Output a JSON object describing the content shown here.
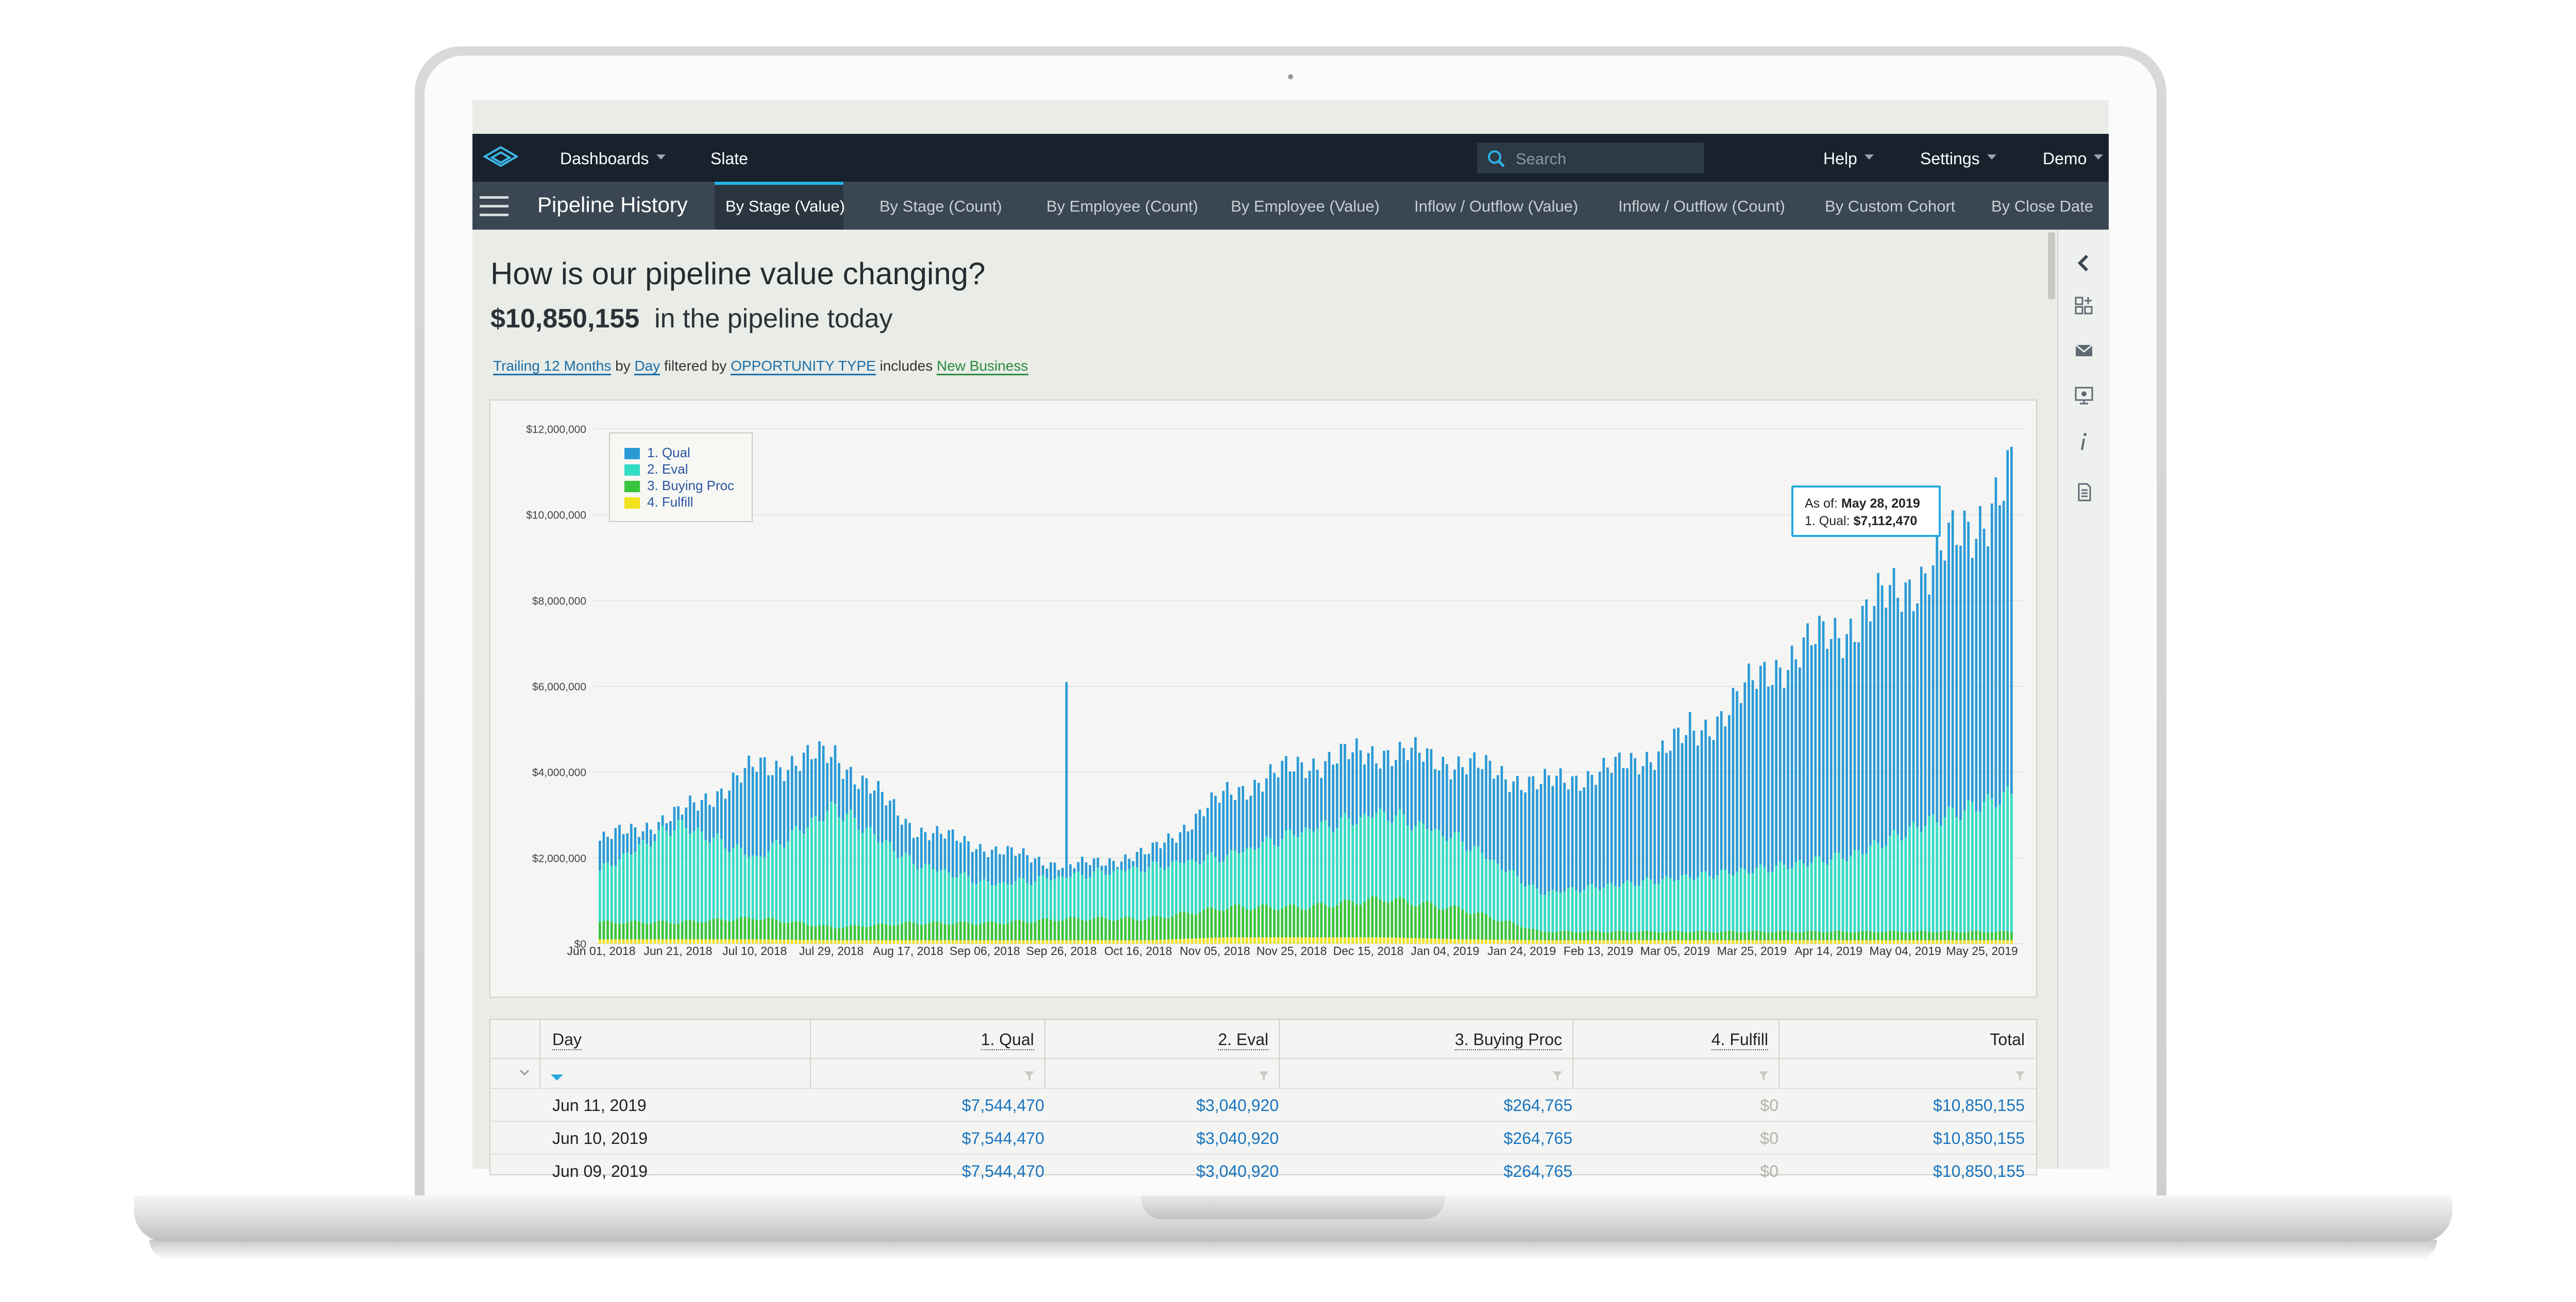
{
  "app": {
    "nav": {
      "dashboards": "Dashboards",
      "slate": "Slate",
      "help": "Help",
      "settings": "Settings",
      "user": "Demo"
    },
    "search": {
      "placeholder": "Search"
    }
  },
  "subnav": {
    "title": "Pipeline History",
    "tabs": [
      {
        "label": "By Stage (Value)",
        "active": true
      },
      {
        "label": "By Stage (Count)"
      },
      {
        "label": "By Employee (Count)"
      },
      {
        "label": "By Employee (Value)"
      },
      {
        "label": "Inflow / Outflow (Value)"
      },
      {
        "label": "Inflow / Outflow (Count)"
      },
      {
        "label": "By Custom Cohort"
      },
      {
        "label": "By Close Date"
      }
    ]
  },
  "page": {
    "heading": "How is our pipeline value changing?",
    "total_value": "$10,850,155",
    "total_suffix": "in the pipeline today",
    "filters": {
      "period": "Trailing 12 Months",
      "by_word": "by",
      "granularity": "Day",
      "filtered_by_word": "filtered by",
      "field": "OPPORTUNITY TYPE",
      "includes_word": "includes",
      "value": "New Business"
    }
  },
  "chart_data": {
    "type": "bar",
    "stacked": true,
    "y_ticks": [
      "$0",
      "$2,000,000",
      "$4,000,000",
      "$6,000,000",
      "$8,000,000",
      "$10,000,000",
      "$12,000,000"
    ],
    "ylim": [
      0,
      12000000
    ],
    "x_ticks": [
      "Jun 01, 2018",
      "Jun 21, 2018",
      "Jul 10, 2018",
      "Jul 29, 2018",
      "Aug 17, 2018",
      "Sep 06, 2018",
      "Sep 26, 2018",
      "Oct 16, 2018",
      "Nov 05, 2018",
      "Nov 25, 2018",
      "Dec 15, 2018",
      "Jan 04, 2019",
      "Jan 24, 2019",
      "Feb 13, 2019",
      "Mar 05, 2019",
      "Mar 25, 2019",
      "Apr 14, 2019",
      "May 04, 2019",
      "May 25, 2019"
    ],
    "series": [
      {
        "name": "1. Qual",
        "color": "#2a9ad6"
      },
      {
        "name": "2. Eval",
        "color": "#33dcc4"
      },
      {
        "name": "3. Buying Proc",
        "color": "#38c43c"
      },
      {
        "name": "4. Fulfill",
        "color": "#f2e21b"
      }
    ],
    "anchor_points": [
      {
        "x": "Jun 01, 2018",
        "total": 2400000,
        "eval": 1200000,
        "buying": 400000,
        "fulfill": 100000
      },
      {
        "x": "Jun 21, 2018",
        "total": 3000000,
        "eval": 2300000,
        "buying": 400000,
        "fulfill": 100000
      },
      {
        "x": "Jul 10, 2018",
        "total": 4100000,
        "eval": 1400000,
        "buying": 500000,
        "fulfill": 100000
      },
      {
        "x": "Jul 29, 2018",
        "total": 4400000,
        "eval": 2800000,
        "buying": 300000,
        "fulfill": 80000
      },
      {
        "x": "Aug 17, 2018",
        "total": 2700000,
        "eval": 1400000,
        "buying": 400000,
        "fulfill": 80000
      },
      {
        "x": "Sep 06, 2018",
        "total": 2200000,
        "eval": 900000,
        "buying": 400000,
        "fulfill": 80000
      },
      {
        "x": "Sep 26, 2018",
        "total": 1800000,
        "eval": 1000000,
        "buying": 500000,
        "fulfill": 80000
      },
      {
        "x": "Oct 16, 2018",
        "total": 2100000,
        "eval": 1200000,
        "buying": 500000,
        "fulfill": 80000
      },
      {
        "x": "Nov 05, 2018",
        "total": 3500000,
        "eval": 1200000,
        "buying": 700000,
        "fulfill": 150000
      },
      {
        "x": "Nov 25, 2018",
        "total": 4200000,
        "eval": 1800000,
        "buying": 700000,
        "fulfill": 150000
      },
      {
        "x": "Dec 15, 2018",
        "total": 4500000,
        "eval": 2000000,
        "buying": 900000,
        "fulfill": 150000
      },
      {
        "x": "Jan 04, 2019",
        "total": 4200000,
        "eval": 1600000,
        "buying": 700000,
        "fulfill": 100000
      },
      {
        "x": "Jan 24, 2019",
        "total": 3700000,
        "eval": 900000,
        "buying": 200000,
        "fulfill": 80000
      },
      {
        "x": "Feb 13, 2019",
        "total": 4100000,
        "eval": 1100000,
        "buying": 200000,
        "fulfill": 80000
      },
      {
        "x": "Mar 05, 2019",
        "total": 4900000,
        "eval": 1300000,
        "buying": 200000,
        "fulfill": 80000
      },
      {
        "x": "Mar 25, 2019",
        "total": 6500000,
        "eval": 1500000,
        "buying": 200000,
        "fulfill": 80000
      },
      {
        "x": "Apr 14, 2019",
        "total": 7500000,
        "eval": 1800000,
        "buying": 200000,
        "fulfill": 80000
      },
      {
        "x": "May 04, 2019",
        "total": 8800000,
        "eval": 2600000,
        "buying": 200000,
        "fulfill": 80000
      },
      {
        "x": "May 25, 2019",
        "total": 10800000,
        "eval": 3200000,
        "buying": 200000,
        "fulfill": 80000
      }
    ],
    "tooltip": {
      "as_of_label": "As of:",
      "date": "May 28, 2019",
      "series_label": "1. Qual:",
      "value": "$7,112,470"
    }
  },
  "table": {
    "columns": [
      "Day",
      "1. Qual",
      "2. Eval",
      "3. Buying Proc",
      "4. Fulfill",
      "Total"
    ],
    "rows": [
      [
        "Jun 11, 2019",
        "$7,544,470",
        "$3,040,920",
        "$264,765",
        "$0",
        "$10,850,155"
      ],
      [
        "Jun 10, 2019",
        "$7,544,470",
        "$3,040,920",
        "$264,765",
        "$0",
        "$10,850,155"
      ],
      [
        "Jun 09, 2019",
        "$7,544,470",
        "$3,040,920",
        "$264,765",
        "$0",
        "$10,850,155"
      ]
    ]
  }
}
